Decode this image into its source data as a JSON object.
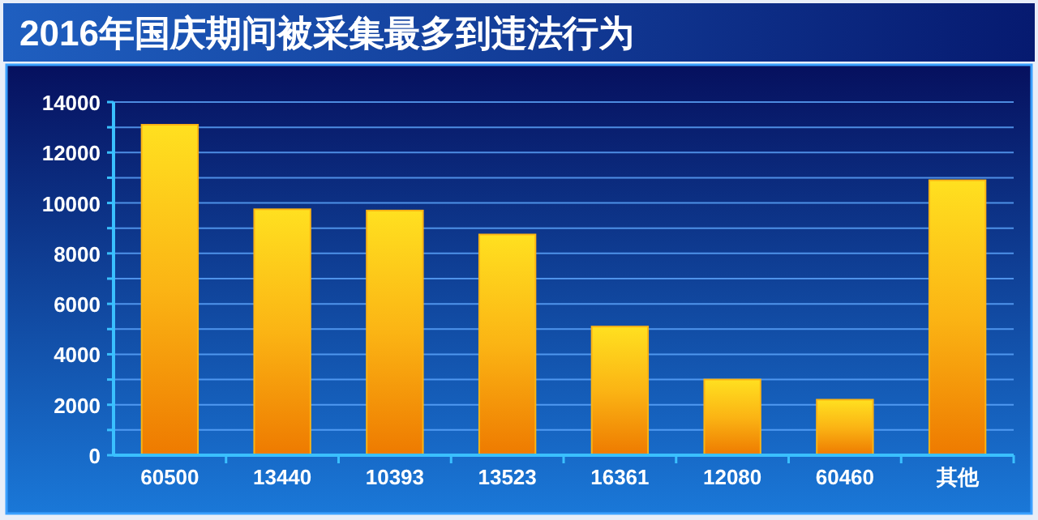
{
  "chart_data": {
    "type": "bar",
    "title": "2016年国庆期间被采集最多到违法行为",
    "categories": [
      "60500",
      "13440",
      "10393",
      "13523",
      "16361",
      "12080",
      "60460",
      "其他"
    ],
    "values": [
      13100,
      9750,
      9700,
      8750,
      5100,
      3000,
      2200,
      10900
    ],
    "color": "#fbb414",
    "ylim": [
      0,
      14000
    ],
    "yticks": [
      0,
      {
        "value": 1000,
        "label": null
      },
      2000,
      {
        "value": 3000,
        "label": null
      },
      4000,
      {
        "value": 5000,
        "label": null
      },
      6000,
      {
        "value": 7000,
        "label": null
      },
      8000,
      {
        "value": 9000,
        "label": null
      },
      10000,
      {
        "value": 11000,
        "label": null
      },
      12000,
      {
        "value": 13000,
        "label": null
      },
      14000
    ],
    "grid": "y"
  }
}
